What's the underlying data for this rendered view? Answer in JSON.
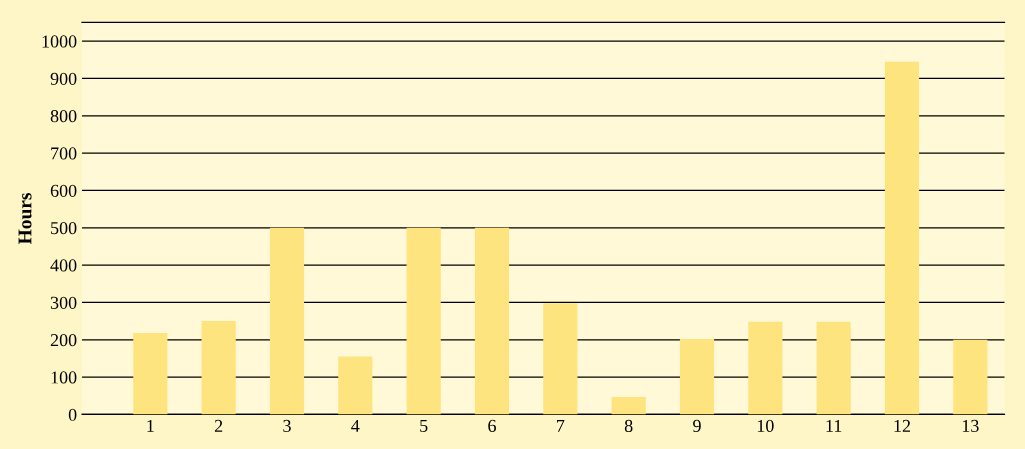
{
  "chart_data": {
    "type": "bar",
    "ylabel": "Hours",
    "categories": [
      "1",
      "2",
      "3",
      "4",
      "5",
      "6",
      "7",
      "8",
      "9",
      "10",
      "11",
      "12",
      "13"
    ],
    "values": [
      218,
      250,
      500,
      155,
      500,
      500,
      298,
      47,
      202,
      248,
      248,
      945,
      200
    ],
    "color": "#fde47f",
    "ylim": [
      0,
      1050
    ],
    "yticks": [
      0,
      100,
      200,
      300,
      400,
      500,
      600,
      700,
      800,
      900,
      1000
    ],
    "grid": "y"
  }
}
